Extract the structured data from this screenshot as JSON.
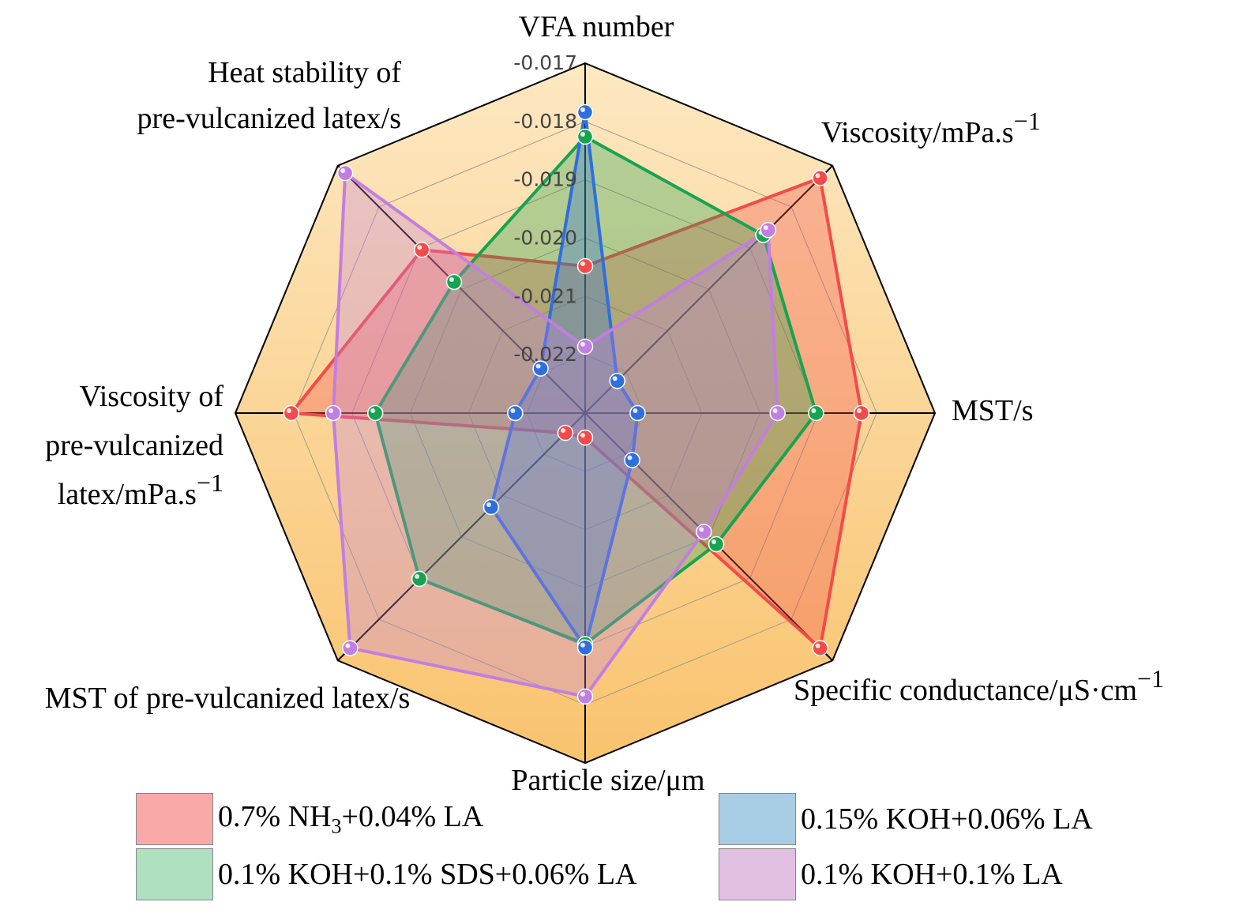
{
  "chart_data": {
    "type": "radar",
    "axes": [
      {
        "label": "VFA number",
        "lines": [
          "VFA number"
        ]
      },
      {
        "label": "Viscosity/mPa.s−1",
        "lines": [
          "Viscosity/mPa.s"
        ],
        "sup": "−1"
      },
      {
        "label": "MST/s",
        "lines": [
          "MST/s"
        ]
      },
      {
        "label": "Specific conductance/μS·cm−1",
        "lines": [
          "Specific conductance/μS·cm"
        ],
        "sup": "−1"
      },
      {
        "label": "Particle size/μm",
        "lines": [
          "Particle size/μm"
        ]
      },
      {
        "label": "MST of pre-vulcanized latex/s",
        "lines": [
          "MST of pre-vulcanized latex/s"
        ]
      },
      {
        "label": "Viscosity of pre-vulcanized latex/mPa.s−1",
        "lines": [
          "Viscosity of",
          "pre-vulcanized",
          "latex/mPa.s"
        ],
        "sup": "−1"
      },
      {
        "label": "Heat stability of pre-vulcanized latex/s",
        "lines": [
          "Heat stability of",
          "pre-vulcanized latex/s"
        ]
      }
    ],
    "tick_labels": [
      "-0.022",
      "-0.021",
      "-0.020",
      "-0.019",
      "-0.018",
      "-0.017"
    ],
    "scale": "normalized 0-1 per axis (fraction of radius)",
    "series": [
      {
        "name": "0.7% NH3+0.04% LA",
        "color": "#f44a4a",
        "values": [
          0.42,
          0.95,
          0.79,
          0.95,
          0.07,
          0.08,
          0.84,
          0.66
        ]
      },
      {
        "name": "0.1% KOH+0.1% SDS+0.06% LA",
        "color": "#18a350",
        "values": [
          0.79,
          0.72,
          0.66,
          0.53,
          0.66,
          0.67,
          0.6,
          0.53
        ]
      },
      {
        "name": "0.15% KOH+0.06% LA",
        "color": "#2f6fdd",
        "values": [
          0.86,
          0.13,
          0.15,
          0.19,
          0.67,
          0.38,
          0.2,
          0.18
        ]
      },
      {
        "name": "0.1% KOH+0.1% LA",
        "color": "#c27ee0",
        "values": [
          0.19,
          0.74,
          0.55,
          0.48,
          0.81,
          0.95,
          0.72,
          0.97
        ]
      }
    ],
    "legend": [
      {
        "pre": "0.7% NH",
        "sub": "3",
        "post": "+0.04% LA",
        "color": "#faa9a9"
      },
      {
        "pre": "0.15% KOH+0.06% LA",
        "sub": "",
        "post": "",
        "color": "#a8cde5"
      },
      {
        "pre": "0.1% KOH+0.1% SDS+0.06% LA",
        "sub": "",
        "post": "",
        "color": "#afe0bf"
      },
      {
        "pre": "0.1% KOH+0.1% LA",
        "sub": "",
        "post": "",
        "color": "#e1c0e1"
      }
    ],
    "background_gradient": [
      "#fde8c2",
      "#f9c36e"
    ]
  }
}
